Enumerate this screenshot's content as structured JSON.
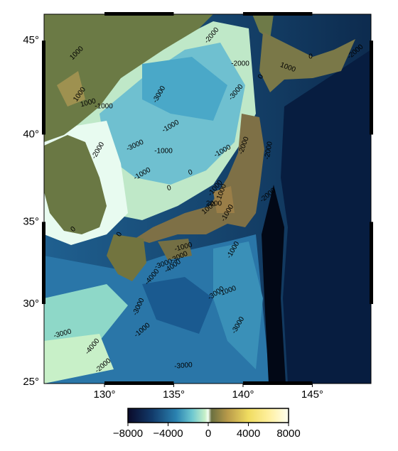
{
  "map": {
    "lon_ticks": [
      {
        "value": 130,
        "label": "130°"
      },
      {
        "value": 135,
        "label": "135°"
      },
      {
        "value": 140,
        "label": "140°"
      },
      {
        "value": 145,
        "label": "145°"
      }
    ],
    "lat_ticks": [
      {
        "value": 25,
        "label": "25°"
      },
      {
        "value": 30,
        "label": "30°"
      },
      {
        "value": 35,
        "label": "35°"
      },
      {
        "value": 40,
        "label": "40°"
      },
      {
        "value": 45,
        "label": "45°"
      }
    ],
    "contour_labels": [
      "1000",
      "-2000",
      "-2000",
      "0",
      "1000",
      "0",
      "-2000",
      "1000",
      "1000",
      "-1000",
      "-3000",
      "-3000",
      "-1000",
      "-3000",
      "-2000",
      "-1000",
      "-1000",
      "0",
      "0",
      "-2000",
      "-2000",
      "-1000",
      "-1000",
      "1000",
      "1000",
      "2000",
      "-1000",
      "0",
      "0",
      "-1000",
      "-3000",
      "-4000",
      "-4000",
      "-3000",
      "-1000",
      "-3000",
      "-2000",
      "-3000",
      "-4000",
      "-3000",
      "-1000",
      "-1000",
      "-3000",
      "-2000",
      "-3000"
    ],
    "colorbar": {
      "ticks": [
        {
          "value": -8000,
          "label": "−8000"
        },
        {
          "value": -4000,
          "label": "−4000"
        },
        0,
        4000,
        8000
      ]
    }
  }
}
